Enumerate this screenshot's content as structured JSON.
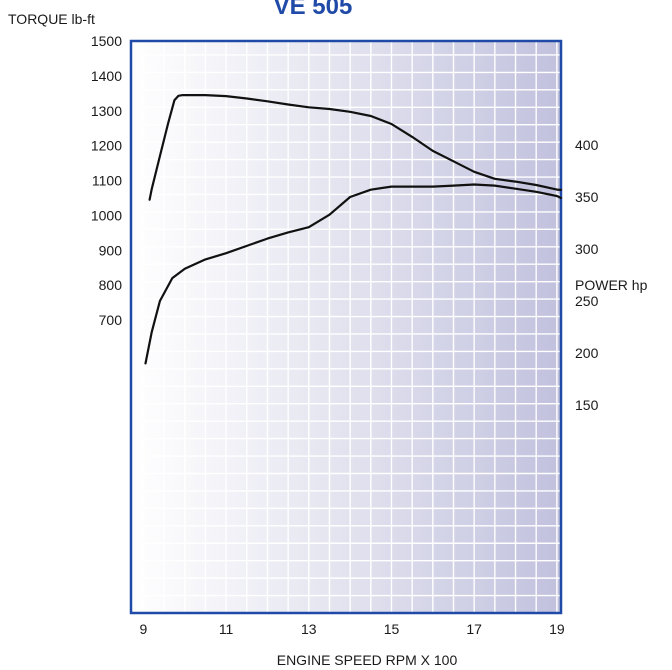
{
  "chart_data": {
    "type": "line",
    "title": "VE 505",
    "xlabel": "ENGINE SPEED RPM X 100",
    "x_ticks": [
      "9",
      "11",
      "13",
      "15",
      "17",
      "19"
    ],
    "xlim": [
      8.7,
      19.1
    ],
    "grid": true,
    "left_axis": {
      "label": "TORQUE lb-ft",
      "ticks": [
        "1500",
        "1400",
        "1300",
        "1200",
        "1100",
        "1000",
        "900",
        "800",
        "700"
      ],
      "ylim": [
        -140,
        1500
      ]
    },
    "right_axis": {
      "label": "POWER hp",
      "ticks": [
        "400",
        "350",
        "300",
        "250",
        "200",
        "150"
      ],
      "ylim": [
        -50,
        500
      ]
    },
    "series": [
      {
        "axis": "left",
        "x": [
          9.15,
          9.2,
          9.4,
          9.6,
          9.75,
          9.85,
          9.95,
          10.5,
          11,
          11.5,
          12,
          12.5,
          13,
          13.5,
          14,
          14.5,
          15,
          15.5,
          16,
          16.5,
          17,
          17.5,
          18,
          18.5,
          19,
          19.1
        ],
        "values": [
          1045,
          1075,
          1170,
          1265,
          1330,
          1343,
          1345,
          1345,
          1342,
          1335,
          1327,
          1318,
          1310,
          1305,
          1297,
          1285,
          1262,
          1225,
          1185,
          1155,
          1125,
          1105,
          1097,
          1087,
          1074,
          1073
        ]
      },
      {
        "axis": "right",
        "x": [
          9.05,
          9.2,
          9.4,
          9.7,
          10,
          10.5,
          11,
          11.5,
          12,
          12.5,
          13,
          13.5,
          14,
          14.5,
          15,
          15.5,
          16,
          16.5,
          17,
          17.5,
          18,
          18.5,
          19,
          19.1
        ],
        "values": [
          190,
          220,
          250,
          272,
          281,
          290,
          296,
          303,
          310,
          316,
          321,
          333,
          350,
          357,
          360,
          360,
          360,
          361,
          362,
          361,
          358,
          355,
          351,
          349
        ]
      }
    ]
  }
}
